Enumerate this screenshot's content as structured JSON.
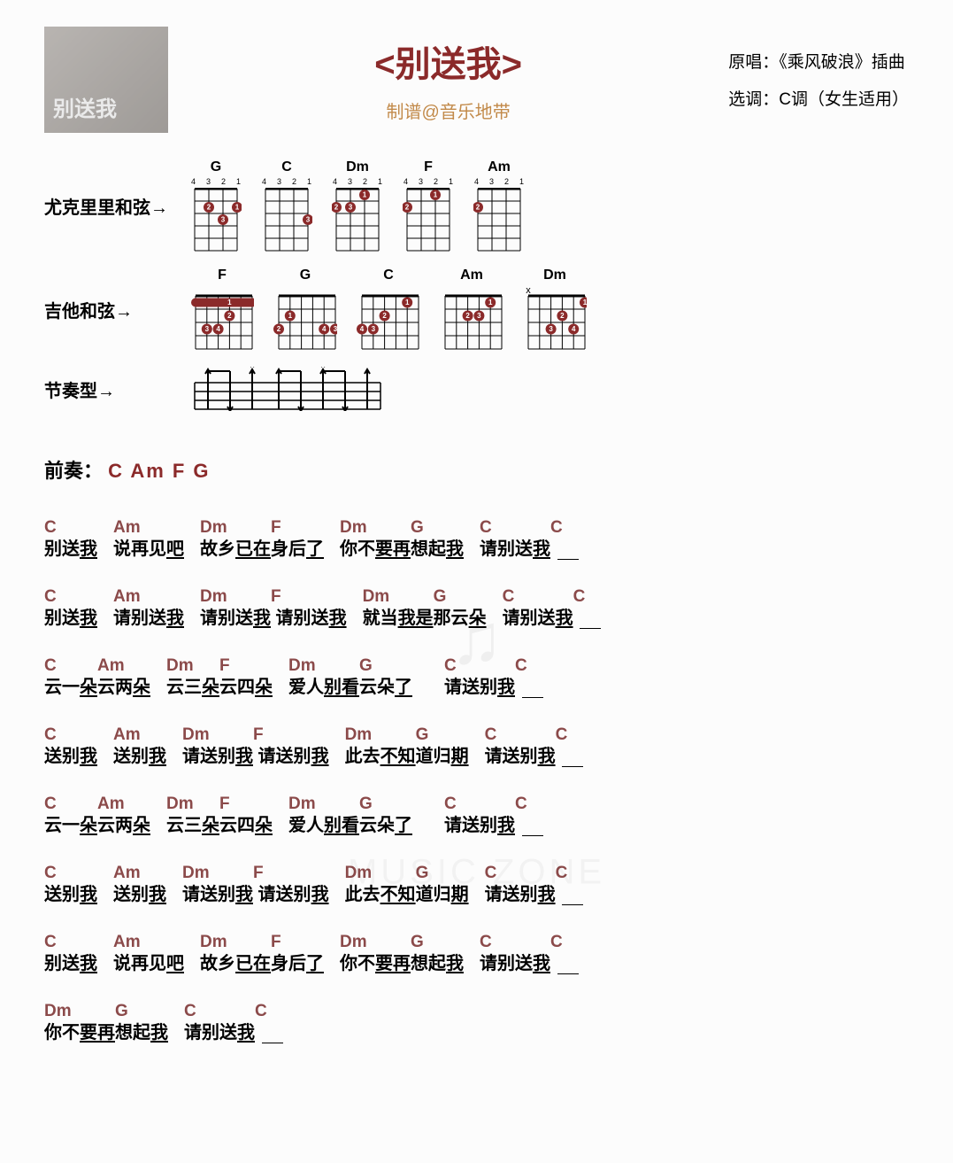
{
  "title": "<别送我>",
  "subtitle": "制谱@音乐地带",
  "meta": {
    "original_label": "原唱：",
    "original_value": "《乘风破浪》插曲",
    "key_label": "选调：",
    "key_value": "C调（女生适用）"
  },
  "chord_labels": {
    "ukulele": "尤克里里和弦→",
    "guitar": "吉他和弦→",
    "rhythm": "节奏型→"
  },
  "uke_chords": [
    {
      "name": "G",
      "fret_labels": [
        "4",
        "3",
        "2",
        "1"
      ],
      "dots": [
        {
          "s": 1,
          "f": 2,
          "n": "1"
        },
        {
          "s": 3,
          "f": 2,
          "n": "2"
        },
        {
          "s": 2,
          "f": 3,
          "n": "3"
        }
      ]
    },
    {
      "name": "C",
      "fret_labels": [
        "4",
        "3",
        "2",
        "1"
      ],
      "dots": [
        {
          "s": 1,
          "f": 3,
          "n": "3"
        }
      ]
    },
    {
      "name": "Dm",
      "fret_labels": [
        "4",
        "3",
        "2",
        "1"
      ],
      "dots": [
        {
          "s": 2,
          "f": 1,
          "n": "1"
        },
        {
          "s": 4,
          "f": 2,
          "n": "2"
        },
        {
          "s": 3,
          "f": 2,
          "n": "3"
        }
      ]
    },
    {
      "name": "F",
      "fret_labels": [
        "4",
        "3",
        "2",
        "1"
      ],
      "dots": [
        {
          "s": 2,
          "f": 1,
          "n": "1"
        },
        {
          "s": 4,
          "f": 2,
          "n": "2"
        }
      ]
    },
    {
      "name": "Am",
      "fret_labels": [
        "4",
        "3",
        "2",
        "1"
      ],
      "dots": [
        {
          "s": 4,
          "f": 2,
          "n": "2"
        }
      ]
    }
  ],
  "guitar_chords": [
    {
      "name": "F",
      "mutes": [],
      "barre": {
        "f": 1,
        "from": 6,
        "to": 1,
        "n": "1"
      },
      "dots": [
        {
          "s": 3,
          "f": 2,
          "n": "2"
        },
        {
          "s": 5,
          "f": 3,
          "n": "3"
        },
        {
          "s": 4,
          "f": 3,
          "n": "4"
        }
      ]
    },
    {
      "name": "G",
      "mutes": [],
      "dots": [
        {
          "s": 5,
          "f": 2,
          "n": "1"
        },
        {
          "s": 6,
          "f": 3,
          "n": "2"
        },
        {
          "s": 1,
          "f": 3,
          "n": "3"
        },
        {
          "s": 2,
          "f": 3,
          "n": "4"
        }
      ]
    },
    {
      "name": "C",
      "mutes": [],
      "dots": [
        {
          "s": 2,
          "f": 1,
          "n": "1"
        },
        {
          "s": 4,
          "f": 2,
          "n": "2"
        },
        {
          "s": 5,
          "f": 3,
          "n": "3"
        },
        {
          "s": 6,
          "f": 3,
          "n": "4"
        }
      ]
    },
    {
      "name": "Am",
      "mutes": [],
      "dots": [
        {
          "s": 2,
          "f": 1,
          "n": "1"
        },
        {
          "s": 4,
          "f": 2,
          "n": "2"
        },
        {
          "s": 3,
          "f": 2,
          "n": "3"
        }
      ]
    },
    {
      "name": "Dm",
      "mutes": [
        6
      ],
      "dots": [
        {
          "s": 1,
          "f": 1,
          "n": "1"
        },
        {
          "s": 3,
          "f": 2,
          "n": "2"
        },
        {
          "s": 4,
          "f": 3,
          "n": "3"
        },
        {
          "s": 2,
          "f": 3,
          "n": "4"
        }
      ]
    }
  ],
  "intro_label": "前奏：",
  "intro_chords": "C Am F G",
  "lyric_lines": [
    [
      {
        "pre": "别送",
        "ch": "C",
        "ul": "我"
      },
      {
        "gap": true
      },
      {
        "pre": "说再见",
        "ch": "Am",
        "ul": "吧"
      },
      {
        "gap": true
      },
      {
        "pre": "故乡",
        "ch": "Dm",
        "ul": "已在"
      },
      {
        "pre": "身后",
        "ch": "F",
        "ul": "了"
      },
      {
        "gap": true
      },
      {
        "pre": "你不",
        "ch": "Dm",
        "ul": "要再"
      },
      {
        "pre": "想起",
        "ch": "G",
        "ul": "我"
      },
      {
        "gap": true
      },
      {
        "pre": "请别送",
        "ch": "C",
        "ul": "我"
      },
      {
        "pre": " ",
        "ch": "C",
        "blank": true
      }
    ],
    [
      {
        "pre": "别送",
        "ch": "C",
        "ul": "我"
      },
      {
        "gap": true
      },
      {
        "pre": "请别送",
        "ch": "Am",
        "ul": "我"
      },
      {
        "gap": true
      },
      {
        "pre": "请别送",
        "ch": "Dm",
        "ul": "我"
      },
      {
        "pre": " 请别送",
        "ch": "F",
        "ul": "我"
      },
      {
        "gap": true
      },
      {
        "pre": "就当",
        "ch": "Dm",
        "ul": "我是"
      },
      {
        "pre": "那云",
        "ch": "G",
        "ul": "朵"
      },
      {
        "gap": true
      },
      {
        "pre": "请别送",
        "ch": "C",
        "ul": "我"
      },
      {
        "pre": " ",
        "ch": "C",
        "blank": true
      }
    ],
    [
      {
        "pre": "云一",
        "ch": "C",
        "ul": "朵"
      },
      {
        "pre": "云两",
        "ch": "Am",
        "ul": "朵"
      },
      {
        "gap": true
      },
      {
        "pre": "云三",
        "ch": "Dm",
        "ul": "朵"
      },
      {
        "pre": "云四",
        "ch": "F",
        "ul": "朵"
      },
      {
        "gap": true
      },
      {
        "pre": "爱人",
        "ch": "Dm",
        "ul": "别看"
      },
      {
        "pre": "云朵",
        "ch": "G",
        "ul": "了"
      },
      {
        "gap": true
      },
      {
        "gap": true
      },
      {
        "pre": "请送别",
        "ch": "C",
        "ul": "我"
      },
      {
        "pre": " ",
        "ch": "C",
        "blank": true
      }
    ],
    [
      {
        "pre": "送别",
        "ch": "C",
        "ul": "我"
      },
      {
        "gap": true
      },
      {
        "pre": "送别",
        "ch": "Am",
        "ul": "我"
      },
      {
        "gap": true
      },
      {
        "pre": "请送别",
        "ch": "Dm",
        "ul": "我"
      },
      {
        "pre": " 请送别",
        "ch": "F",
        "ul": "我"
      },
      {
        "gap": true
      },
      {
        "pre": "此去",
        "ch": "Dm",
        "ul": "不知"
      },
      {
        "pre": "道归",
        "ch": "G",
        "ul": "期"
      },
      {
        "gap": true
      },
      {
        "pre": "请送别",
        "ch": "C",
        "ul": "我"
      },
      {
        "pre": " ",
        "ch": "C",
        "blank": true
      }
    ],
    [
      {
        "pre": "云一",
        "ch": "C",
        "ul": "朵"
      },
      {
        "pre": "云两",
        "ch": "Am",
        "ul": "朵"
      },
      {
        "gap": true
      },
      {
        "pre": "云三",
        "ch": "Dm",
        "ul": "朵"
      },
      {
        "pre": "云四",
        "ch": "F",
        "ul": "朵"
      },
      {
        "gap": true
      },
      {
        "pre": "爱人",
        "ch": "Dm",
        "ul": "别看"
      },
      {
        "pre": "云朵",
        "ch": "G",
        "ul": "了"
      },
      {
        "gap": true
      },
      {
        "gap": true
      },
      {
        "pre": "请送别",
        "ch": "C",
        "ul": "我"
      },
      {
        "pre": " ",
        "ch": "C",
        "blank": true
      }
    ],
    [
      {
        "pre": "送别",
        "ch": "C",
        "ul": "我"
      },
      {
        "gap": true
      },
      {
        "pre": "送别",
        "ch": "Am",
        "ul": "我"
      },
      {
        "gap": true
      },
      {
        "pre": "请送别",
        "ch": "Dm",
        "ul": "我"
      },
      {
        "pre": " 请送别",
        "ch": "F",
        "ul": "我"
      },
      {
        "gap": true
      },
      {
        "pre": "此去",
        "ch": "Dm",
        "ul": "不知"
      },
      {
        "pre": "道归",
        "ch": "G",
        "ul": "期"
      },
      {
        "gap": true
      },
      {
        "pre": "请送别",
        "ch": "C",
        "ul": "我"
      },
      {
        "pre": " ",
        "ch": "C",
        "blank": true
      }
    ],
    [
      {
        "pre": "别送",
        "ch": "C",
        "ul": "我"
      },
      {
        "gap": true
      },
      {
        "pre": "说再见",
        "ch": "Am",
        "ul": "吧"
      },
      {
        "gap": true
      },
      {
        "pre": "故乡",
        "ch": "Dm",
        "ul": "已在"
      },
      {
        "pre": "身后",
        "ch": "F",
        "ul": "了"
      },
      {
        "gap": true
      },
      {
        "pre": "你不",
        "ch": "Dm",
        "ul": "要再"
      },
      {
        "pre": "想起",
        "ch": "G",
        "ul": "我"
      },
      {
        "gap": true
      },
      {
        "pre": "请别送",
        "ch": "C",
        "ul": "我"
      },
      {
        "pre": " ",
        "ch": "C",
        "blank": true
      }
    ],
    [
      {
        "pre": "你不",
        "ch": "Dm",
        "ul": "要再"
      },
      {
        "pre": "想起",
        "ch": "G",
        "ul": "我"
      },
      {
        "gap": true
      },
      {
        "pre": "请别送",
        "ch": "C",
        "ul": "我"
      },
      {
        "pre": " ",
        "ch": "C",
        "blank": true
      }
    ]
  ],
  "colors": {
    "title": "#8b2a2a",
    "subtitle": "#c28a4a",
    "chord_text": "#8b4a4a",
    "dot": "#8b2a2a"
  }
}
